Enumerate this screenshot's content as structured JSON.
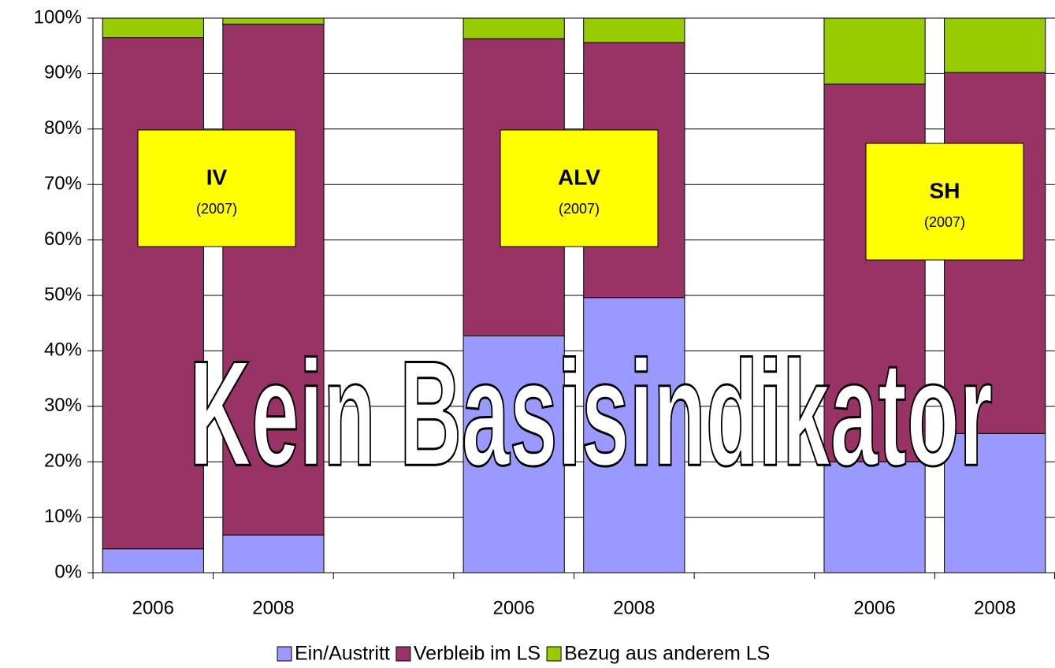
{
  "chart_data": {
    "type": "stacked_bar",
    "categories": [
      "2006",
      "2008",
      null,
      "2006",
      "2008",
      null,
      "2006",
      "2008"
    ],
    "series": [
      {
        "name": "Ein/Austritt",
        "color": "#9999ff",
        "values": [
          4.3,
          6.8,
          null,
          42.7,
          49.6,
          null,
          20.0,
          25.1
        ]
      },
      {
        "name": "Verbleib im LS",
        "color": "#993366",
        "values": [
          92.2,
          92.1,
          null,
          53.6,
          46.0,
          null,
          68.1,
          65.1
        ]
      },
      {
        "name": "Bezug aus anderem LS",
        "color": "#99cc00",
        "values": [
          3.5,
          1.1,
          null,
          3.7,
          4.4,
          null,
          11.9,
          9.8
        ]
      }
    ],
    "ylim": [
      0,
      100
    ],
    "yticks": [
      {
        "value": 0,
        "label": "0%"
      },
      {
        "value": 10,
        "label": "10%"
      },
      {
        "value": 20,
        "label": "20%"
      },
      {
        "value": 30,
        "label": "30%"
      },
      {
        "value": 40,
        "label": "40%"
      },
      {
        "value": 50,
        "label": "50%"
      },
      {
        "value": 60,
        "label": "60%"
      },
      {
        "value": 70,
        "label": "70%"
      },
      {
        "value": 80,
        "label": "80%"
      },
      {
        "value": 90,
        "label": "90%"
      },
      {
        "value": 100,
        "label": "100%"
      }
    ],
    "grid": true,
    "legend": "bottom",
    "annotations": [
      {
        "text": "IV",
        "subtext": "(2007)"
      },
      {
        "text": "ALV",
        "subtext": "(2007)"
      },
      {
        "text": "SH",
        "subtext": "(2007)"
      }
    ],
    "watermark": "Kein Basisindikator"
  }
}
